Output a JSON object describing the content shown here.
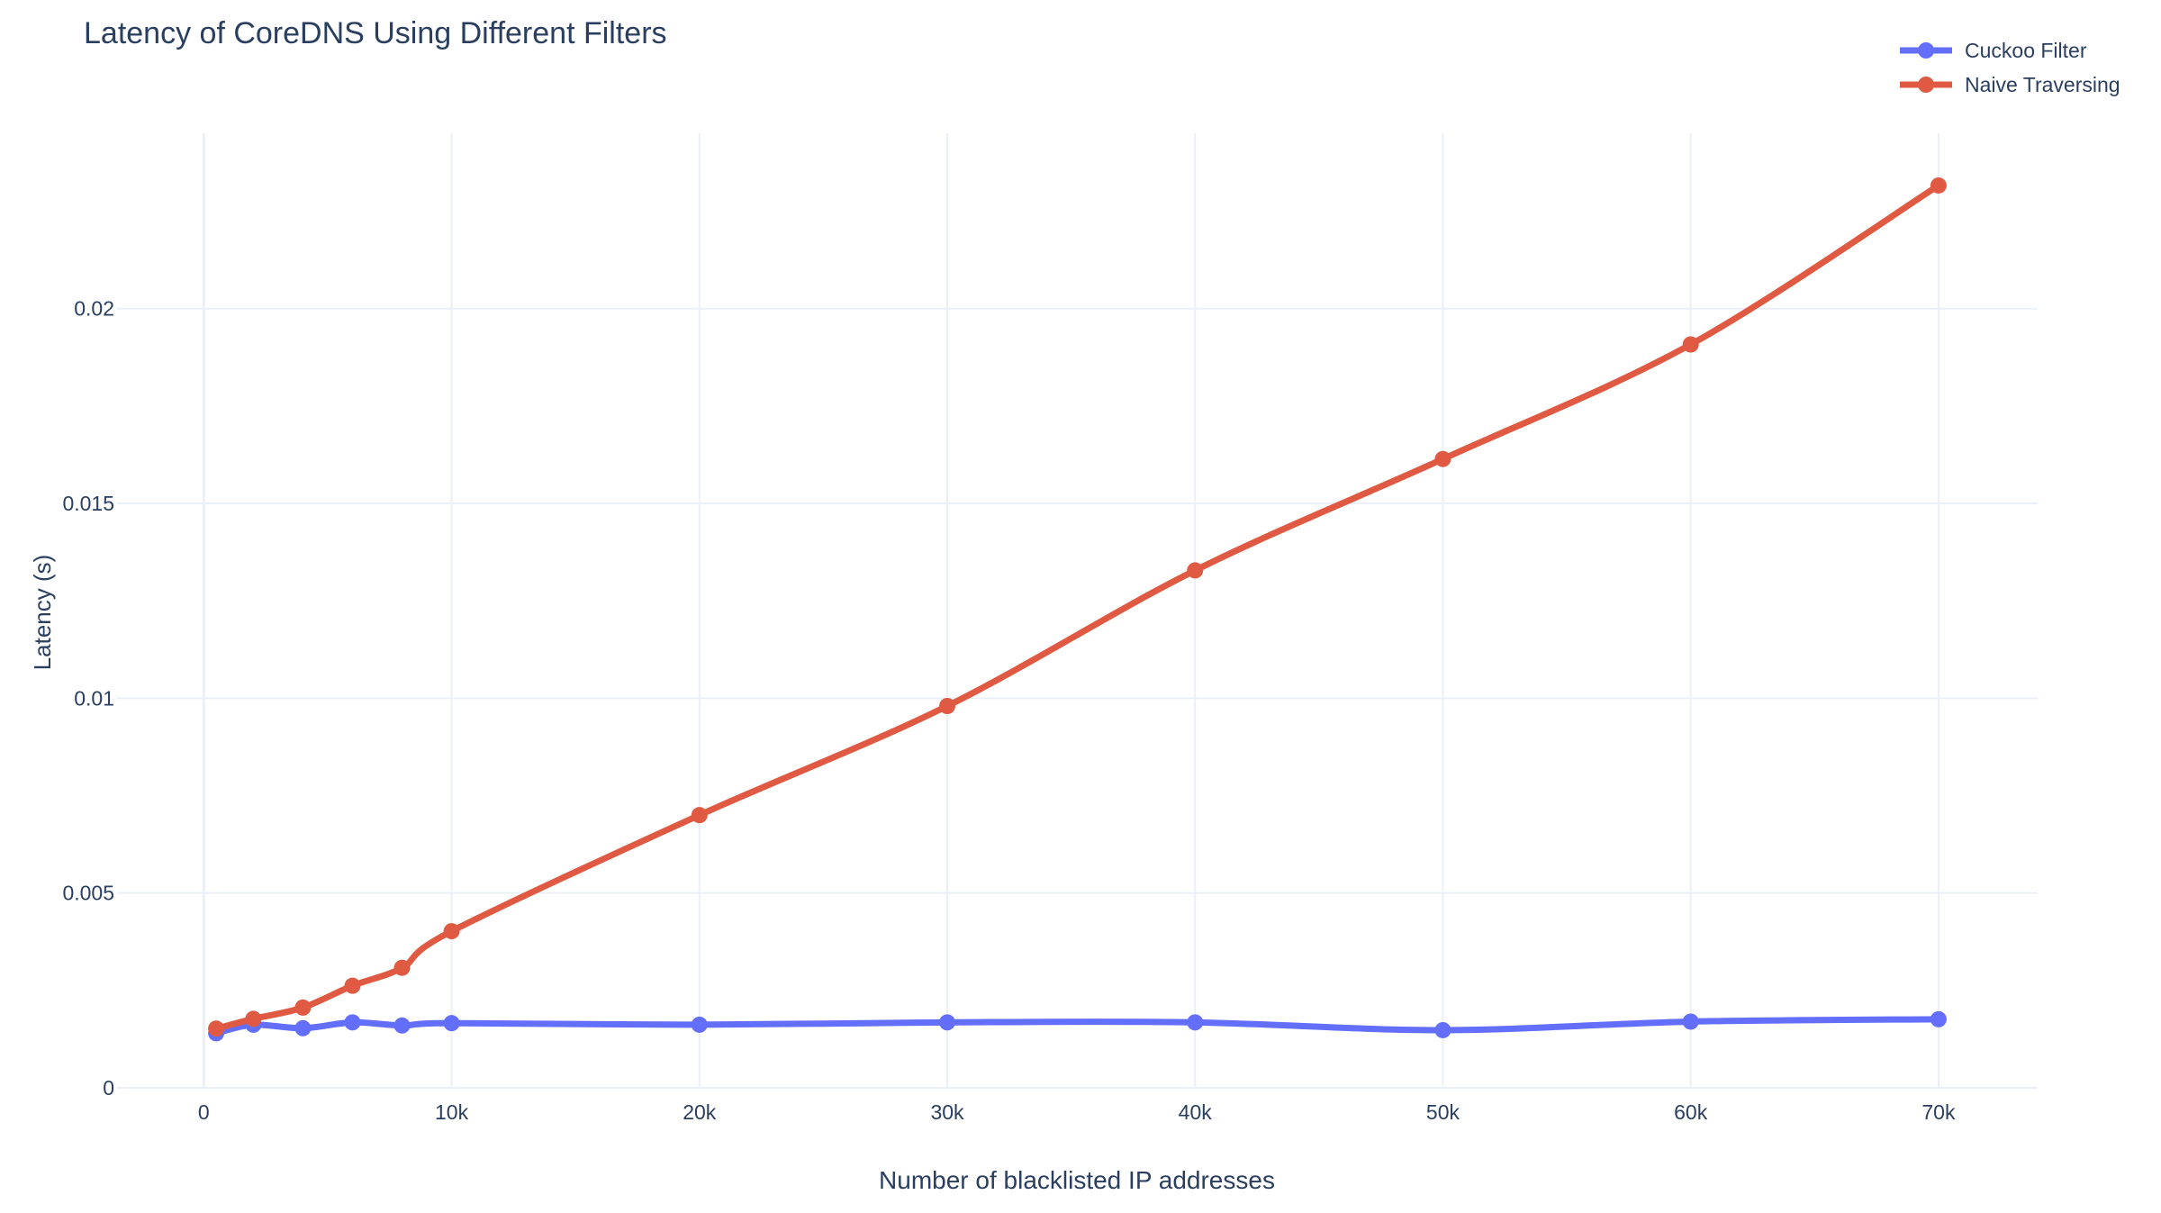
{
  "chart_data": {
    "type": "line",
    "title": "Latency of CoreDNS Using Different Filters",
    "xlabel": "Number of blacklisted IP addresses",
    "ylabel": "Latency (s)",
    "x": [
      500,
      2000,
      4000,
      6000,
      8000,
      10000,
      20000,
      30000,
      40000,
      50000,
      60000,
      70000
    ],
    "xlim": [
      -3500,
      74000
    ],
    "ylim": [
      0,
      0.0245
    ],
    "xticks": [
      0,
      10000,
      20000,
      30000,
      40000,
      50000,
      60000,
      70000
    ],
    "xtick_labels": [
      "0",
      "10k",
      "20k",
      "30k",
      "40k",
      "50k",
      "60k",
      "70k"
    ],
    "yticks": [
      0,
      0.005,
      0.01,
      0.015,
      0.02
    ],
    "ytick_labels": [
      "0",
      "0.005",
      "0.01",
      "0.015",
      "0.02"
    ],
    "grid": true,
    "legend_position": "top-right",
    "series": [
      {
        "name": "Cuckoo Filter",
        "color": "#636efa",
        "values": [
          0.0014,
          0.00162,
          0.00153,
          0.00168,
          0.0016,
          0.00166,
          0.00162,
          0.00168,
          0.00168,
          0.00148,
          0.0017,
          0.00176
        ]
      },
      {
        "name": "Naive Traversing",
        "color": "#e05a43",
        "values": [
          0.00152,
          0.00177,
          0.00206,
          0.00262,
          0.00308,
          0.00402,
          0.007,
          0.0098,
          0.01328,
          0.01614,
          0.01908,
          0.02316
        ]
      }
    ]
  }
}
